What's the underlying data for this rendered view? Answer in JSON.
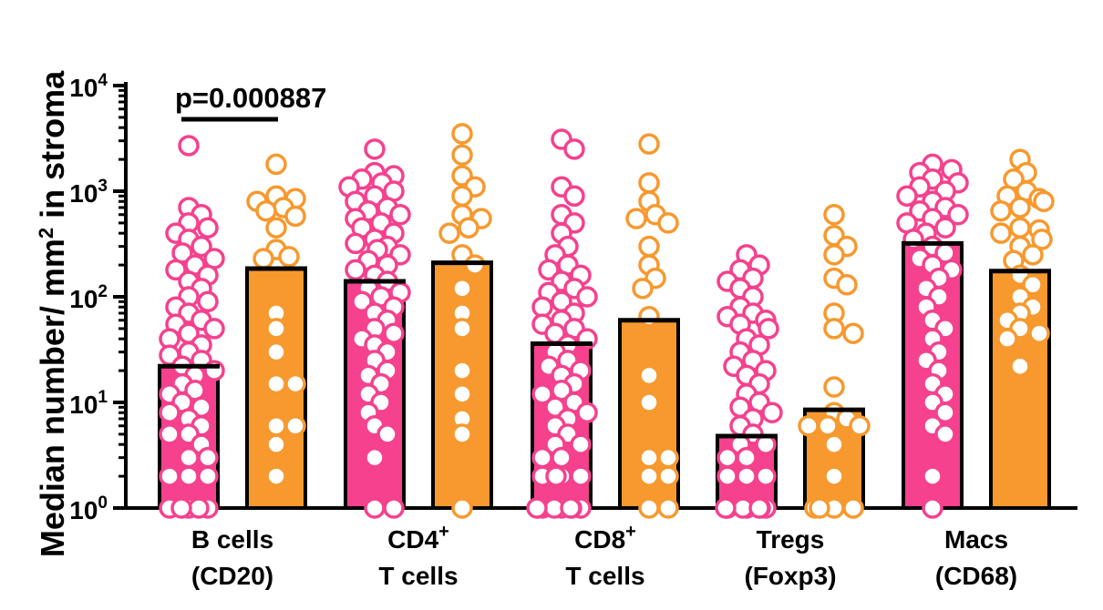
{
  "chart_data": {
    "type": "bar",
    "scale": "log",
    "ylim": [
      1,
      10000
    ],
    "ylabel": {
      "text": "Median number/ mm",
      "sup": "2",
      "suffix": " in stroma"
    },
    "ticks": [
      {
        "base": "10",
        "exp": "0",
        "value": 1
      },
      {
        "base": "10",
        "exp": "1",
        "value": 10
      },
      {
        "base": "10",
        "exp": "2",
        "value": 100
      },
      {
        "base": "10",
        "exp": "3",
        "value": 1000
      },
      {
        "base": "10",
        "exp": "4",
        "value": 10000
      }
    ],
    "colors": {
      "pink": "#f5418e",
      "orange": "#f7992e"
    },
    "categories": [
      {
        "line1": "B cells",
        "line1_sup": "",
        "line2": "(CD20)",
        "bars": [
          {
            "color": "pink",
            "median": 22,
            "points": [
              2700,
              700,
              600,
              500,
              450,
              400,
              350,
              300,
              260,
              230,
              200,
              180,
              160,
              140,
              120,
              100,
              90,
              80,
              70,
              60,
              55,
              50,
              45,
              40,
              35,
              30,
              28,
              25,
              22,
              20,
              18,
              15,
              13,
              12,
              10,
              9,
              8,
              7,
              6,
              5,
              5,
              4,
              4,
              3,
              3,
              2,
              2,
              2,
              1,
              1,
              1,
              1,
              1
            ]
          },
          {
            "color": "orange",
            "median": 185,
            "points": [
              1800,
              900,
              850,
              800,
              700,
              650,
              580,
              450,
              280,
              240,
              230,
              70,
              50,
              30,
              15,
              15,
              6,
              6,
              4,
              2
            ]
          }
        ]
      },
      {
        "line1": "CD4",
        "line1_sup": "+",
        "line2": "T cells",
        "bars": [
          {
            "color": "pink",
            "median": 140,
            "points": [
              2500,
              1500,
              1400,
              1300,
              1200,
              1100,
              1000,
              900,
              800,
              700,
              650,
              600,
              550,
              500,
              450,
              400,
              350,
              320,
              300,
              280,
              250,
              220,
              200,
              180,
              160,
              140,
              120,
              110,
              100,
              90,
              80,
              70,
              60,
              50,
              45,
              40,
              35,
              30,
              25,
              20,
              18,
              15,
              12,
              10,
              8,
              6,
              5,
              3,
              1,
              1
            ]
          },
          {
            "color": "orange",
            "median": 210,
            "points": [
              3500,
              2200,
              1400,
              1100,
              900,
              600,
              550,
              450,
              400,
              250,
              200,
              120,
              70,
              50,
              20,
              12,
              7,
              5,
              1
            ]
          }
        ]
      },
      {
        "line1": "CD8",
        "line1_sup": "+",
        "line2": "T cells",
        "bars": [
          {
            "color": "pink",
            "median": 36,
            "points": [
              3100,
              2500,
              1100,
              900,
              600,
              500,
              400,
              300,
              250,
              200,
              180,
              160,
              140,
              120,
              110,
              100,
              90,
              80,
              70,
              60,
              55,
              50,
              45,
              40,
              35,
              30,
              25,
              22,
              20,
              18,
              15,
              13,
              12,
              10,
              9,
              8,
              7,
              6,
              5,
              4,
              4,
              3,
              3,
              2,
              2,
              2,
              2,
              1,
              1,
              1,
              1,
              1,
              1,
              1,
              1
            ]
          },
          {
            "color": "orange",
            "median": 60,
            "points": [
              2800,
              1200,
              800,
              600,
              550,
              500,
              300,
              200,
              150,
              120,
              65,
              18,
              10,
              3,
              3,
              2,
              2,
              1,
              1
            ]
          }
        ]
      },
      {
        "line1": "Tregs",
        "line1_sup": "",
        "line2": "(Foxp3)",
        "bars": [
          {
            "color": "pink",
            "median": 4.8,
            "points": [
              250,
              200,
              180,
              150,
              140,
              120,
              100,
              80,
              70,
              65,
              60,
              55,
              50,
              40,
              35,
              30,
              25,
              22,
              20,
              18,
              15,
              12,
              10,
              9,
              8,
              7,
              6,
              5,
              4,
              4,
              3,
              3,
              2,
              2,
              2,
              1,
              1,
              1,
              1,
              1,
              1,
              1,
              1
            ]
          },
          {
            "color": "orange",
            "median": 8.5,
            "points": [
              600,
              380,
              300,
              250,
              150,
              130,
              70,
              50,
              45,
              14,
              8,
              7,
              6,
              6,
              6,
              4,
              2,
              1,
              1,
              1,
              1,
              1
            ]
          }
        ]
      },
      {
        "line1": "Macs",
        "line1_sup": "",
        "line2": "(CD68)",
        "bars": [
          {
            "color": "pink",
            "median": 320,
            "points": [
              1800,
              1600,
              1500,
              1300,
              1200,
              1100,
              1000,
              900,
              800,
              700,
              650,
              600,
              550,
              500,
              450,
              400,
              350,
              300,
              260,
              230,
              200,
              180,
              150,
              120,
              100,
              80,
              60,
              50,
              40,
              30,
              25,
              20,
              15,
              12,
              10,
              8,
              6,
              5,
              2,
              1
            ]
          },
          {
            "color": "orange",
            "median": 175,
            "points": [
              2000,
              1500,
              1300,
              1000,
              900,
              850,
              800,
              700,
              650,
              450,
              430,
              400,
              350,
              300,
              250,
              220,
              160,
              130,
              100,
              80,
              70,
              60,
              50,
              45,
              40,
              22
            ]
          }
        ]
      }
    ],
    "annotation": {
      "text": "p=0.000887",
      "category": 0
    }
  }
}
